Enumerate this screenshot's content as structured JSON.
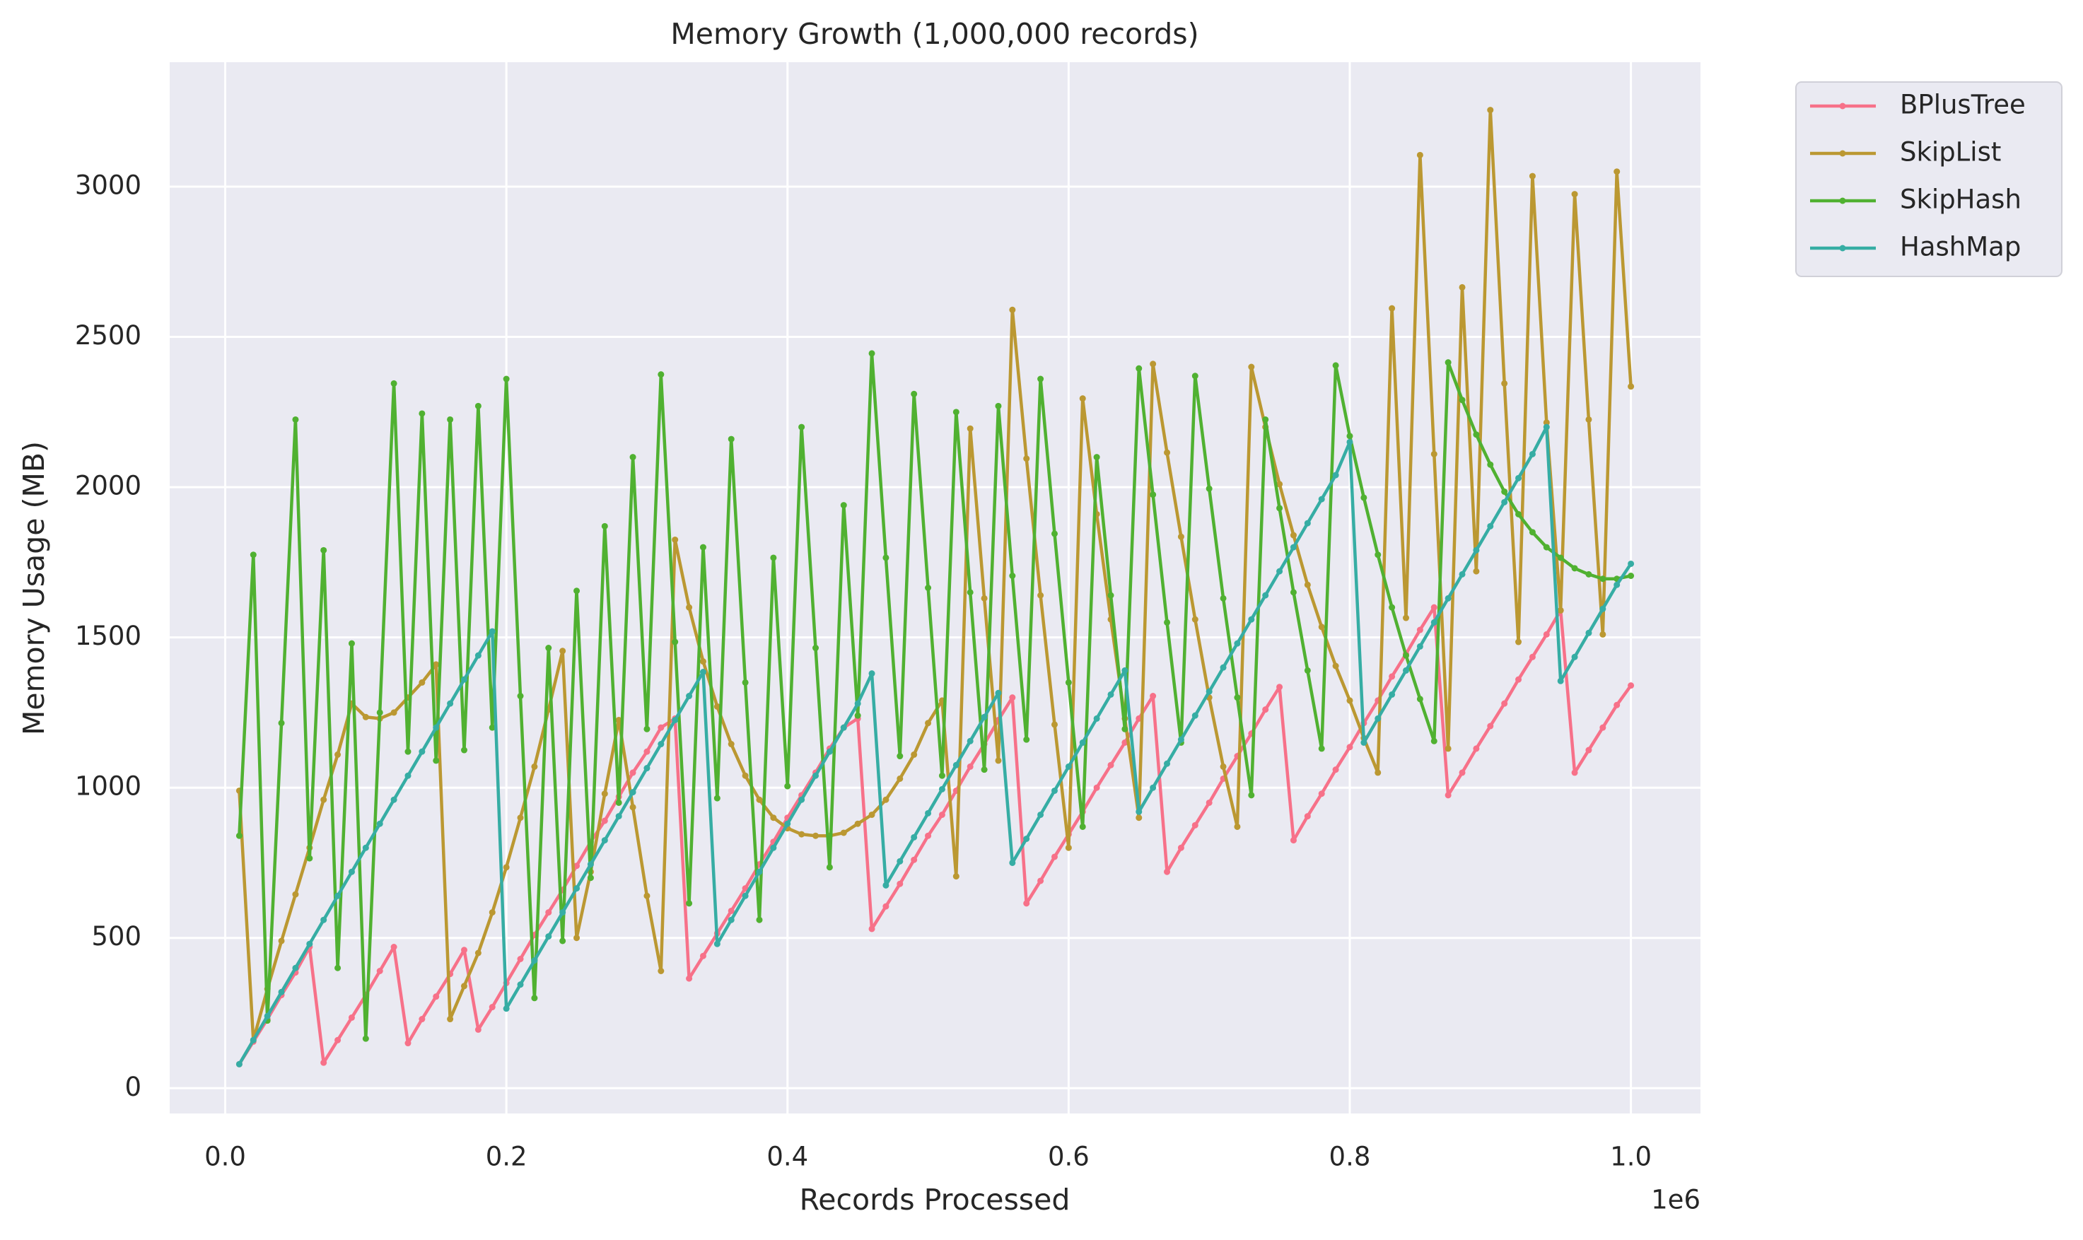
{
  "chart_data": {
    "type": "line",
    "title": "Memory Growth (1,000,000 records)",
    "x_label": "Records Processed",
    "y_label": "Memory Usage (MB)",
    "x_offset_label": "1e6",
    "x": [
      10000,
      20000,
      30000,
      40000,
      50000,
      60000,
      70000,
      80000,
      90000,
      100000,
      110000,
      120000,
      130000,
      140000,
      150000,
      160000,
      170000,
      180000,
      190000,
      200000,
      210000,
      220000,
      230000,
      240000,
      250000,
      260000,
      270000,
      280000,
      290000,
      300000,
      310000,
      320000,
      330000,
      340000,
      350000,
      360000,
      370000,
      380000,
      390000,
      400000,
      410000,
      420000,
      430000,
      440000,
      450000,
      460000,
      470000,
      480000,
      490000,
      500000,
      510000,
      520000,
      530000,
      540000,
      550000,
      560000,
      570000,
      580000,
      590000,
      600000,
      610000,
      620000,
      630000,
      640000,
      650000,
      660000,
      670000,
      680000,
      690000,
      700000,
      710000,
      720000,
      730000,
      740000,
      750000,
      760000,
      770000,
      780000,
      790000,
      800000,
      810000,
      820000,
      830000,
      840000,
      850000,
      860000,
      870000,
      880000,
      890000,
      900000,
      910000,
      920000,
      930000,
      940000,
      950000,
      960000,
      970000,
      980000,
      990000,
      1000000
    ],
    "series": [
      {
        "name": "BPlusTree",
        "color": "#f77189",
        "values": [
          80,
          155,
          230,
          310,
          385,
          470,
          85,
          160,
          235,
          310,
          390,
          470,
          150,
          230,
          305,
          380,
          460,
          195,
          270,
          350,
          430,
          510,
          585,
          660,
          740,
          820,
          890,
          970,
          1050,
          1120,
          1200,
          1230,
          365,
          440,
          515,
          590,
          665,
          745,
          820,
          900,
          975,
          1050,
          1130,
          1200,
          1230,
          530,
          605,
          680,
          760,
          840,
          910,
          990,
          1070,
          1145,
          1225,
          1300,
          615,
          690,
          770,
          845,
          920,
          1000,
          1075,
          1150,
          1230,
          1305,
          720,
          800,
          875,
          950,
          1030,
          1105,
          1180,
          1260,
          1335,
          825,
          905,
          980,
          1060,
          1135,
          1215,
          1290,
          1370,
          1445,
          1525,
          1600,
          975,
          1050,
          1130,
          1205,
          1280,
          1360,
          1435,
          1510,
          1590,
          1050,
          1125,
          1200,
          1275,
          1340
        ]
      },
      {
        "name": "SkipList",
        "color": "#bb9832",
        "values": [
          990,
          160,
          330,
          490,
          645,
          800,
          960,
          1110,
          1280,
          1235,
          1230,
          1250,
          1300,
          1350,
          1410,
          230,
          340,
          450,
          585,
          735,
          900,
          1070,
          1260,
          1455,
          500,
          720,
          980,
          1225,
          935,
          640,
          390,
          1825,
          1600,
          1420,
          1270,
          1145,
          1040,
          960,
          900,
          865,
          845,
          840,
          840,
          850,
          880,
          910,
          960,
          1030,
          1110,
          1215,
          1290,
          705,
          2195,
          1630,
          1090,
          2590,
          2095,
          1640,
          1210,
          800,
          2295,
          1910,
          1560,
          1230,
          900,
          2410,
          2115,
          1835,
          1560,
          1300,
          1070,
          870,
          2400,
          2200,
          2010,
          1840,
          1675,
          1535,
          1405,
          1290,
          1165,
          1050,
          2595,
          1565,
          3105,
          2110,
          1130,
          2665,
          1720,
          3255,
          2345,
          1485,
          3035,
          2215,
          1590,
          2975,
          2225,
          1510,
          3050,
          2335
        ]
      },
      {
        "name": "SkipHash",
        "color": "#50b131",
        "values": [
          840,
          1775,
          225,
          1215,
          2225,
          765,
          1790,
          400,
          1480,
          165,
          1250,
          2345,
          1120,
          2245,
          1090,
          2225,
          1125,
          2270,
          1200,
          2360,
          1305,
          300,
          1465,
          490,
          1655,
          700,
          1870,
          950,
          2100,
          1195,
          2375,
          1485,
          615,
          1800,
          965,
          2160,
          1350,
          560,
          1765,
          1005,
          2200,
          1465,
          735,
          1940,
          1240,
          2445,
          1765,
          1105,
          2310,
          1665,
          1040,
          2250,
          1650,
          1060,
          2270,
          1705,
          1160,
          2360,
          1845,
          1350,
          870,
          2100,
          1640,
          1195,
          2395,
          1975,
          1550,
          1150,
          2370,
          1995,
          1630,
          1300,
          975,
          2225,
          1930,
          1650,
          1390,
          1130,
          2405,
          2170,
          1965,
          1775,
          1600,
          1440,
          1295,
          1155,
          2415,
          2290,
          2175,
          2075,
          1985,
          1910,
          1850,
          1800,
          1765,
          1730,
          1710,
          1695,
          1695,
          1705
        ]
      },
      {
        "name": "HashMap",
        "color": "#36ada4",
        "values": [
          80,
          160,
          240,
          320,
          400,
          480,
          560,
          640,
          720,
          800,
          880,
          960,
          1040,
          1120,
          1200,
          1280,
          1360,
          1440,
          1520,
          265,
          345,
          425,
          505,
          585,
          665,
          745,
          825,
          905,
          985,
          1065,
          1145,
          1225,
          1305,
          1385,
          480,
          560,
          640,
          720,
          800,
          880,
          960,
          1040,
          1120,
          1200,
          1280,
          1380,
          675,
          755,
          835,
          915,
          995,
          1075,
          1155,
          1235,
          1315,
          750,
          830,
          910,
          990,
          1070,
          1150,
          1230,
          1310,
          1390,
          920,
          1000,
          1080,
          1160,
          1240,
          1320,
          1400,
          1480,
          1560,
          1640,
          1720,
          1800,
          1880,
          1960,
          2040,
          2150,
          1150,
          1230,
          1310,
          1390,
          1470,
          1550,
          1630,
          1710,
          1790,
          1870,
          1950,
          2030,
          2110,
          2200,
          1355,
          1435,
          1515,
          1595,
          1675,
          1745
        ]
      }
    ],
    "xlim": [
      -39500,
      1049500
    ],
    "ylim": [
      -84,
      3414
    ],
    "xticks": [
      {
        "value": 0,
        "label": "0.0"
      },
      {
        "value": 200000,
        "label": "0.2"
      },
      {
        "value": 400000,
        "label": "0.4"
      },
      {
        "value": 600000,
        "label": "0.6"
      },
      {
        "value": 800000,
        "label": "0.8"
      },
      {
        "value": 1000000,
        "label": "1.0"
      }
    ],
    "yticks": [
      0,
      500,
      1000,
      1500,
      2000,
      2500,
      3000
    ],
    "grid": true,
    "legend": "outside upper right"
  }
}
